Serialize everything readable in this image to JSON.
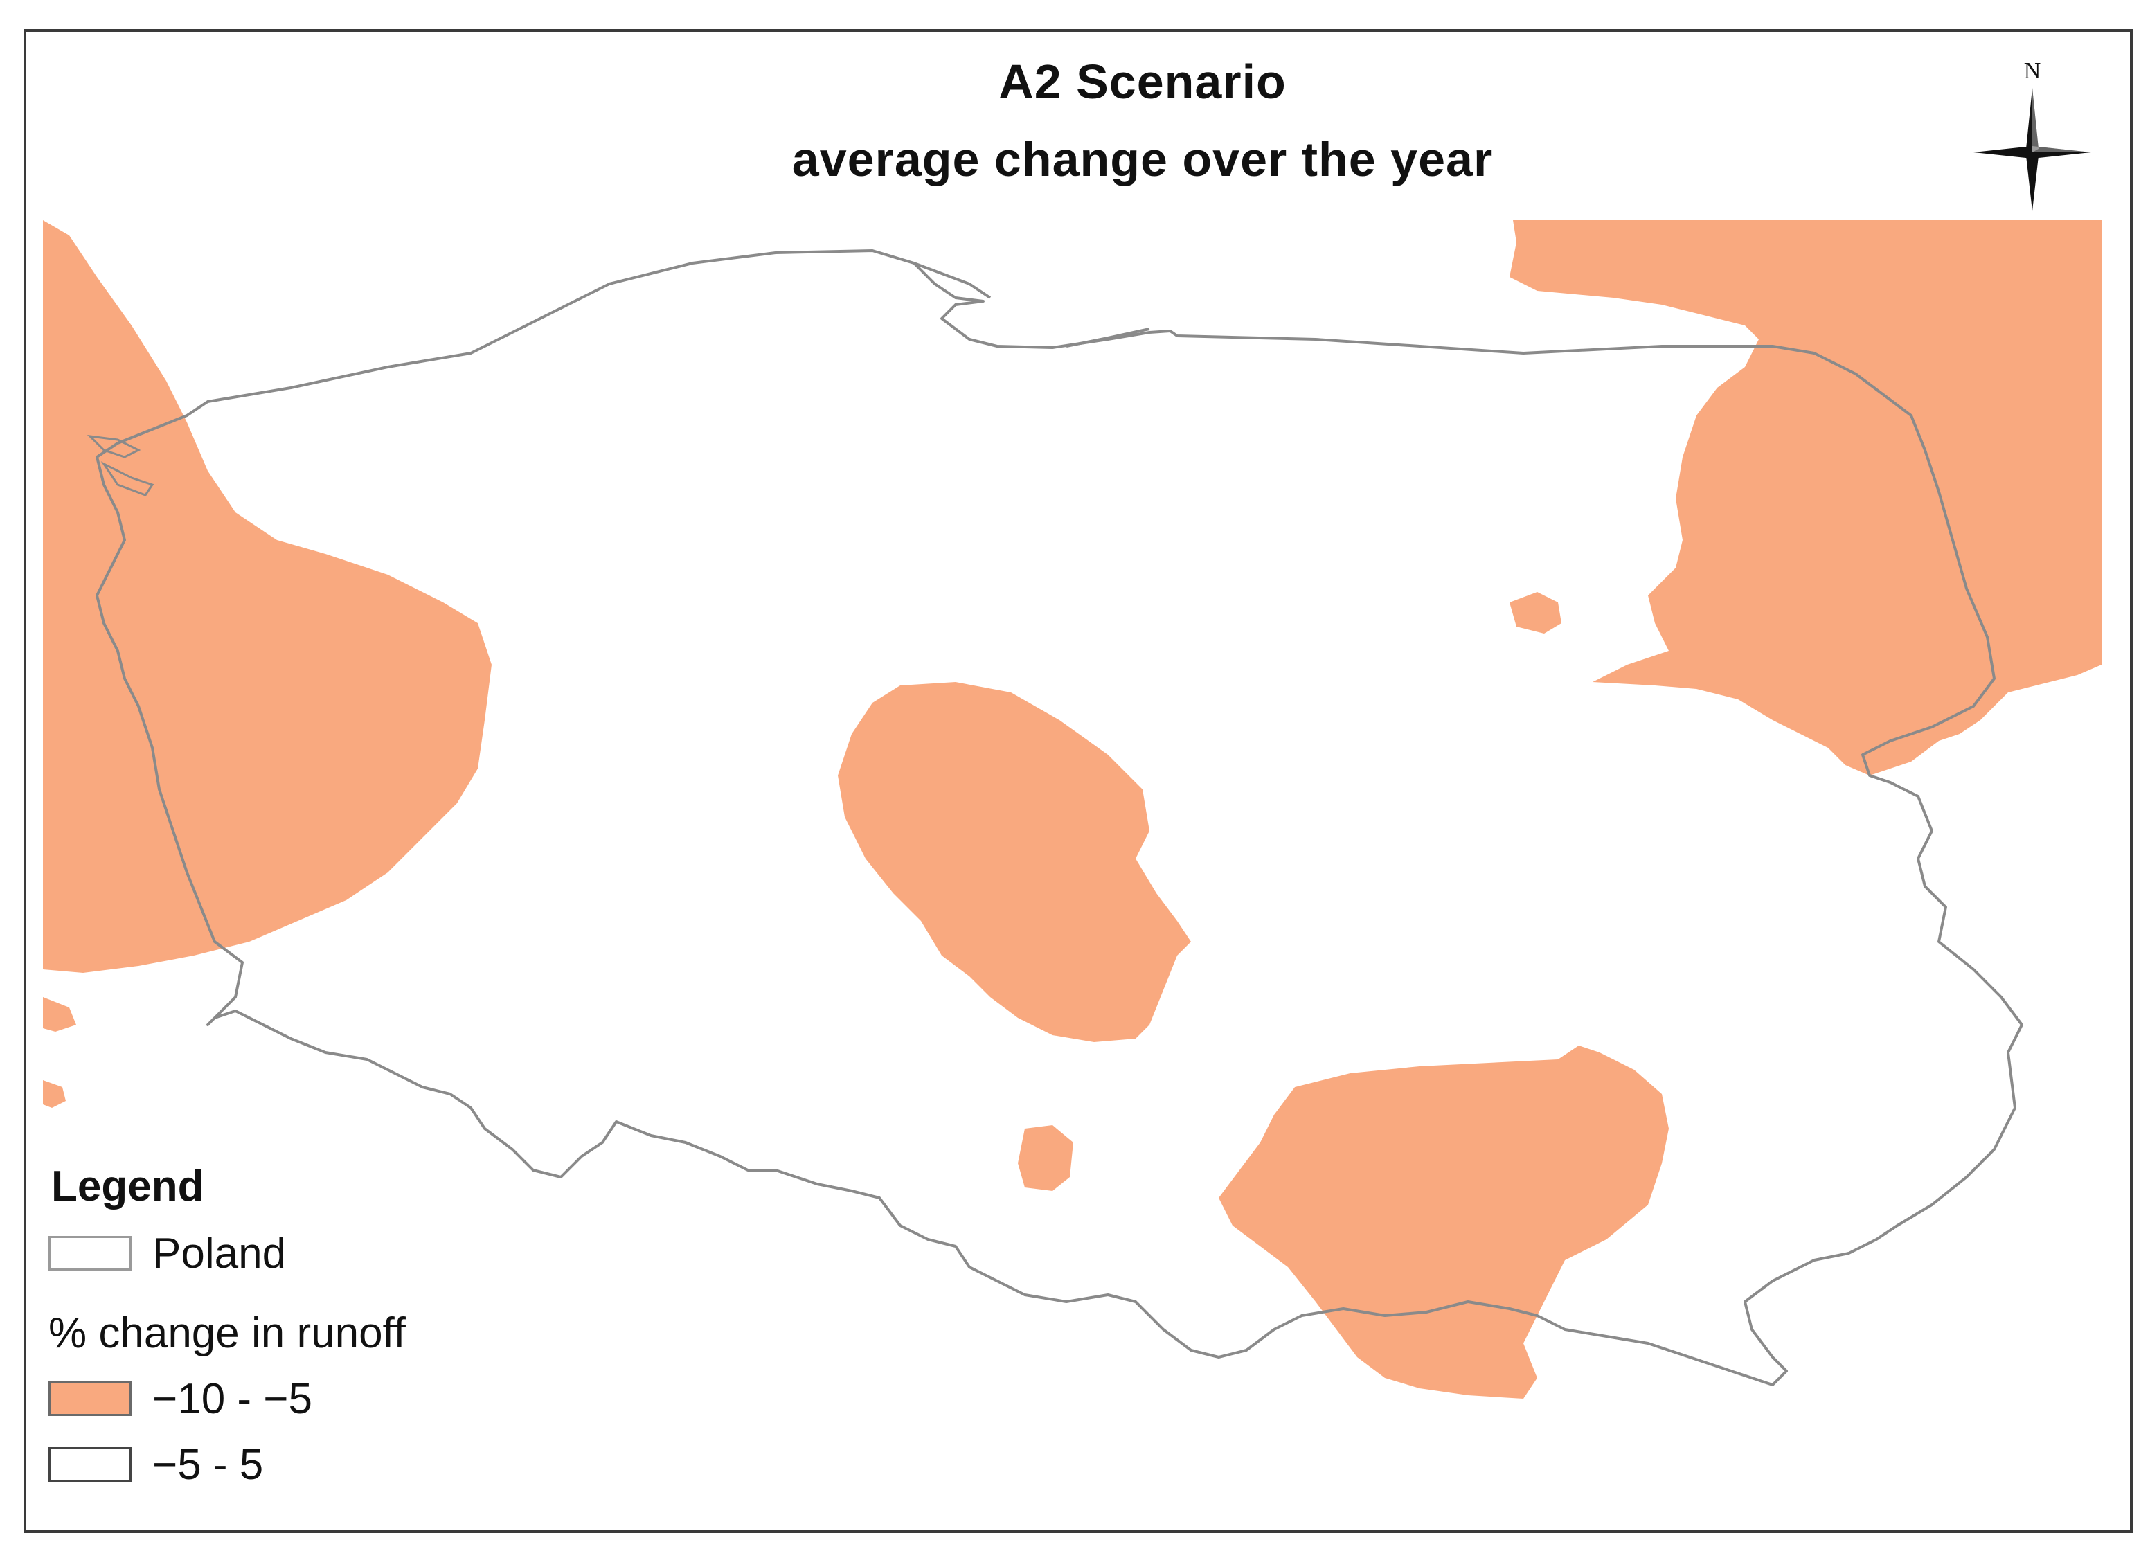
{
  "title": "A2 Scenario",
  "subtitle": "average change over the year",
  "compass": {
    "label": "N",
    "icon": "north-arrow-compass-icon"
  },
  "legend": {
    "heading": "Legend",
    "boundary_label": "Poland",
    "subtitle": "% change in runoff",
    "classes": [
      {
        "range": "−10 - −5",
        "color": "#f9a97f"
      },
      {
        "range": "−5 - 5",
        "color": "#ffffff"
      }
    ]
  },
  "colors": {
    "decrease_fill": "#f9a97f",
    "neutral_fill": "#ffffff",
    "border_line": "#8a8a8a",
    "frame": "#3a3a3a"
  }
}
